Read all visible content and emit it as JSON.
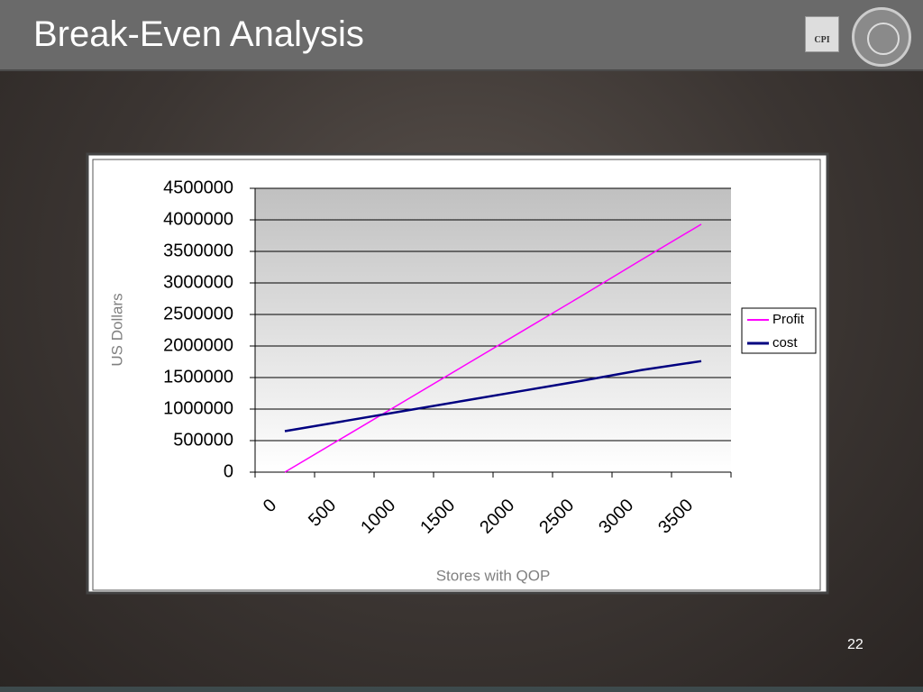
{
  "slide": {
    "title": "Break-Even Analysis",
    "page_number": "22",
    "logo_text": "CPI"
  },
  "chart_data": {
    "type": "line",
    "x_label": "Stores with QOP",
    "y_label": "US Dollars",
    "categories": [
      "0",
      "500",
      "1000",
      "1500",
      "2000",
      "2500",
      "3000",
      "3500"
    ],
    "series": [
      {
        "name": "Profit",
        "color": "#ff00ff",
        "values": [
          0,
          560000,
          1120000,
          1680000,
          2240000,
          2800000,
          3370000,
          3930000
        ]
      },
      {
        "name": "cost",
        "color": "#000080",
        "values": [
          650000,
          810000,
          970000,
          1130000,
          1290000,
          1450000,
          1620000,
          1760000
        ]
      }
    ],
    "ylim": [
      0,
      4500000
    ],
    "yticks": [
      0,
      500000,
      1000000,
      1500000,
      2000000,
      2500000,
      3000000,
      3500000,
      4000000,
      4500000
    ],
    "grid": true,
    "legend": "right"
  }
}
